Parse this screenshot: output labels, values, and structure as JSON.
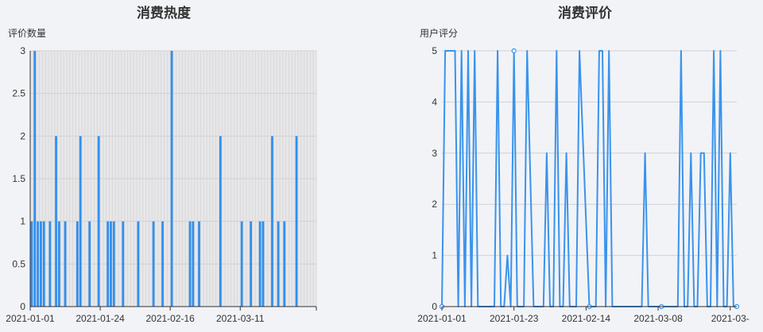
{
  "colors": {
    "bar": "#2f8ff0",
    "line": "#3a93ec",
    "grid": "#d2d2d2",
    "band_stripe": "#d9d9d9",
    "band_bg": "#e7e7ea",
    "axis": "#333333"
  },
  "chart_data": [
    {
      "type": "bar",
      "title": "消费热度",
      "ylabel": "评价数量",
      "xlabel": "",
      "ylim": [
        0,
        3
      ],
      "yticks": [
        "0",
        "0.5",
        "1",
        "1.5",
        "2",
        "2.5",
        "3"
      ],
      "grid": true,
      "x_start": "2021-01-01",
      "x_end": "2021-04-05",
      "xtick_labels": [
        "2021-01-01",
        "2021-01-24",
        "2021-02-16",
        "2021-03-11"
      ],
      "series": [
        {
          "x": [
            "2021-01-01",
            "2021-01-02",
            "2021-01-03",
            "2021-01-04",
            "2021-01-05",
            "2021-01-07",
            "2021-01-09",
            "2021-01-10",
            "2021-01-12",
            "2021-01-16",
            "2021-01-17",
            "2021-01-20",
            "2021-01-23",
            "2021-01-26",
            "2021-01-27",
            "2021-01-28",
            "2021-01-31",
            "2021-02-05",
            "2021-02-10",
            "2021-02-13",
            "2021-02-16",
            "2021-02-22",
            "2021-02-23",
            "2021-02-25",
            "2021-03-04",
            "2021-03-11",
            "2021-03-14",
            "2021-03-17",
            "2021-03-18",
            "2021-03-21",
            "2021-03-23",
            "2021-03-25",
            "2021-03-29"
          ],
          "values": [
            1,
            3,
            1,
            1,
            1,
            1,
            2,
            1,
            1,
            1,
            2,
            1,
            2,
            1,
            1,
            1,
            1,
            1,
            1,
            1,
            3,
            1,
            1,
            1,
            2,
            1,
            1,
            1,
            1,
            2,
            1,
            1,
            2
          ]
        }
      ]
    },
    {
      "type": "line",
      "title": "消费评价",
      "ylabel": "用户评分",
      "xlabel": "",
      "ylim": [
        0,
        5
      ],
      "yticks": [
        "0",
        "1",
        "2",
        "3",
        "4",
        "5"
      ],
      "grid": true,
      "x_start": "2021-01-01",
      "x_end": "2021-04-01",
      "xtick_labels": [
        "2021-01-01",
        "2021-01-23",
        "2021-02-14",
        "2021-03-08",
        "2021-03-"
      ],
      "series": [
        {
          "x": [
            "2021-01-01",
            "2021-01-02",
            "2021-01-05",
            "2021-01-06",
            "2021-01-07",
            "2021-01-08",
            "2021-01-09",
            "2021-01-10",
            "2021-01-11",
            "2021-01-12",
            "2021-01-13",
            "2021-01-14",
            "2021-01-17",
            "2021-01-18",
            "2021-01-19",
            "2021-01-20",
            "2021-01-21",
            "2021-01-22",
            "2021-01-23",
            "2021-01-24",
            "2021-01-25",
            "2021-01-26",
            "2021-01-27",
            "2021-01-29",
            "2021-01-30",
            "2021-01-31",
            "2021-02-01",
            "2021-02-02",
            "2021-02-03",
            "2021-02-04",
            "2021-02-05",
            "2021-02-06",
            "2021-02-07",
            "2021-02-08",
            "2021-02-09",
            "2021-02-10",
            "2021-02-11",
            "2021-02-12",
            "2021-02-15",
            "2021-02-16",
            "2021-02-17",
            "2021-02-18",
            "2021-02-19",
            "2021-02-20",
            "2021-02-21",
            "2021-02-22",
            "2021-02-27",
            "2021-02-28",
            "2021-03-01",
            "2021-03-02",
            "2021-03-03",
            "2021-03-04",
            "2021-03-05",
            "2021-03-06",
            "2021-03-07",
            "2021-03-08",
            "2021-03-09",
            "2021-03-10",
            "2021-03-11",
            "2021-03-12",
            "2021-03-13",
            "2021-03-14",
            "2021-03-15",
            "2021-03-16",
            "2021-03-17",
            "2021-03-18",
            "2021-03-19",
            "2021-03-20",
            "2021-03-21",
            "2021-03-22",
            "2021-03-23",
            "2021-03-24",
            "2021-03-25",
            "2021-03-26",
            "2021-03-27",
            "2021-03-28",
            "2021-03-29",
            "2021-03-30",
            "2021-03-31",
            "2021-04-01"
          ],
          "values": [
            0,
            5,
            5,
            0,
            5,
            0,
            5,
            0,
            5,
            0,
            0,
            0,
            0,
            5,
            0,
            0,
            1,
            0,
            5,
            0,
            0,
            0,
            5,
            0,
            0,
            0,
            0,
            3,
            0,
            0,
            5,
            0,
            0,
            3,
            0,
            0,
            0,
            5,
            0,
            0,
            0,
            5,
            5,
            0,
            5,
            0,
            0,
            0,
            0,
            0,
            0,
            3,
            0,
            0,
            0,
            0,
            0,
            0,
            0,
            0,
            0,
            0,
            5,
            0,
            0,
            3,
            0,
            0,
            3,
            3,
            0,
            0,
            5,
            0,
            5,
            0,
            0,
            3,
            0,
            0
          ],
          "hollow_points": [
            "2021-01-01",
            "2021-01-23",
            "2021-02-15",
            "2021-03-09",
            "2021-04-01"
          ]
        }
      ]
    }
  ]
}
